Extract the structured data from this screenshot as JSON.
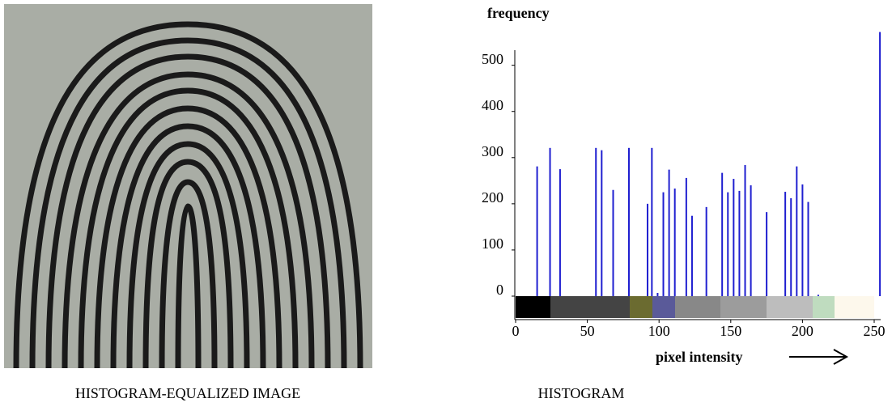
{
  "image_caption": "HISTOGRAM-EQUALIZED IMAGE",
  "chart_data": {
    "type": "bar",
    "title": "HISTOGRAM",
    "ylabel": "frequency",
    "xlabel": "pixel intensity",
    "x": [
      15,
      24,
      31,
      56,
      60,
      68,
      79,
      92,
      95,
      99,
      103,
      107,
      111,
      119,
      123,
      133,
      144,
      148,
      152,
      156,
      160,
      164,
      175,
      188,
      192,
      196,
      200,
      204,
      211,
      254
    ],
    "values": [
      281,
      321,
      275,
      321,
      316,
      230,
      321,
      200,
      321,
      7,
      225,
      274,
      233,
      256,
      174,
      193,
      267,
      225,
      254,
      228,
      284,
      240,
      182,
      226,
      212,
      281,
      242,
      204,
      3,
      572
    ],
    "color": "#1f1fd0",
    "xlim": [
      0,
      250
    ],
    "xticks": [
      0,
      50,
      100,
      150,
      200,
      250
    ],
    "ylim": [
      0,
      580
    ],
    "yticks": [
      0,
      100,
      200,
      300,
      400,
      500
    ]
  }
}
